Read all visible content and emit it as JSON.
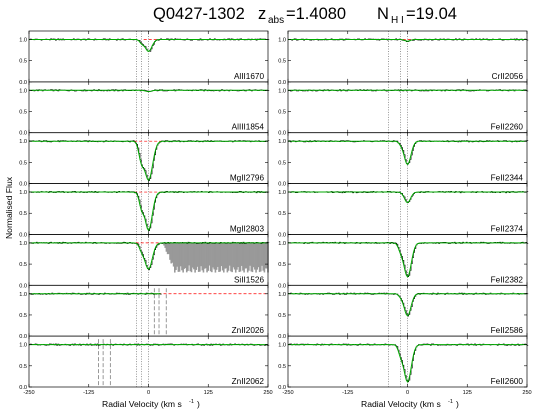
{
  "title": {
    "qso": "Q0427-1302",
    "z_sym": "z",
    "z_sub": "abs",
    "z_val": "=1.4080",
    "n_sym": "N",
    "n_sub": "H I",
    "n_val": "=19.04"
  },
  "chart_data": {
    "type": "line",
    "xlabel_main": "Radial Velocity (km s",
    "xlabel_sup": "-1",
    "xlabel_end": ")",
    "ylabel": "Normalised Flux",
    "xlim": [
      -250,
      250
    ],
    "ylim": [
      0.0,
      1.2
    ],
    "xticks": [
      -250,
      -125,
      0,
      125,
      250
    ],
    "yticks": [
      0.0,
      0.5,
      1.0
    ],
    "continuum_color": "#ff0000",
    "data_color": "#000000",
    "fit_color": "#00aa00",
    "blend_color": "#999999",
    "columns": [
      {
        "component_markers": [
          -25,
          -15,
          0
        ],
        "panels": [
          {
            "ion": "AlII1670",
            "absorptions": [
              {
                "v": 0,
                "depth": 0.28,
                "width": 10
              },
              {
                "v": -14,
                "depth": 0.08,
                "width": 6
              }
            ],
            "continuum_range": [
              -10,
              40
            ]
          },
          {
            "ion": "AlIII1854",
            "absorptions": [
              {
                "v": 0,
                "depth": 0.03,
                "width": 8
              }
            ]
          },
          {
            "ion": "MgII2796",
            "absorptions": [
              {
                "v": 0,
                "depth": 0.92,
                "width": 12
              },
              {
                "v": -14,
                "depth": 0.45,
                "width": 8
              }
            ],
            "continuum_range": [
              -30,
              40
            ]
          },
          {
            "ion": "MgII2803",
            "absorptions": [
              {
                "v": 0,
                "depth": 0.9,
                "width": 11
              },
              {
                "v": -14,
                "depth": 0.35,
                "width": 7
              }
            ],
            "continuum_range": [
              -30,
              40
            ]
          },
          {
            "ion": "SiII1526",
            "absorptions": [
              {
                "v": 0,
                "depth": 0.62,
                "width": 11
              },
              {
                "v": -14,
                "depth": 0.15,
                "width": 7
              }
            ],
            "continuum_range": [
              -100,
              40
            ],
            "blend": {
              "from": 30,
              "to": 250,
              "depth": 0.7
            }
          },
          {
            "ion": "ZnII2026",
            "absorptions": [],
            "continuum_range": [
              0,
              250
            ],
            "shifted_markers": [
              12,
              22,
              37
            ],
            "data_range": [
              -250,
              25
            ]
          },
          {
            "ion": "ZnII2062",
            "absorptions": [],
            "shifted_markers": [
              -105,
              -95,
              -80
            ]
          }
        ]
      },
      {
        "component_markers": [
          -40,
          -15,
          0
        ],
        "panels": [
          {
            "ion": "CrII2056",
            "absorptions": [
              {
                "v": 0,
                "depth": 0.04,
                "width": 8
              }
            ],
            "continuum_range": [
              -10,
              40
            ]
          },
          {
            "ion": "FeII2260",
            "absorptions": []
          },
          {
            "ion": "FeII2344",
            "absorptions": [
              {
                "v": 0,
                "depth": 0.55,
                "width": 10
              },
              {
                "v": -14,
                "depth": 0.05,
                "width": 6
              }
            ]
          },
          {
            "ion": "FeII2374",
            "absorptions": [
              {
                "v": 0,
                "depth": 0.25,
                "width": 9
              }
            ]
          },
          {
            "ion": "FeII2382",
            "absorptions": [
              {
                "v": 0,
                "depth": 0.8,
                "width": 11
              },
              {
                "v": -14,
                "depth": 0.15,
                "width": 7
              }
            ]
          },
          {
            "ion": "FeII2586",
            "absorptions": [
              {
                "v": 0,
                "depth": 0.52,
                "width": 10
              },
              {
                "v": -14,
                "depth": 0.05,
                "width": 6
              }
            ]
          },
          {
            "ion": "FeII2600",
            "absorptions": [
              {
                "v": 0,
                "depth": 0.88,
                "width": 11
              },
              {
                "v": -14,
                "depth": 0.2,
                "width": 7
              }
            ]
          }
        ]
      }
    ]
  }
}
